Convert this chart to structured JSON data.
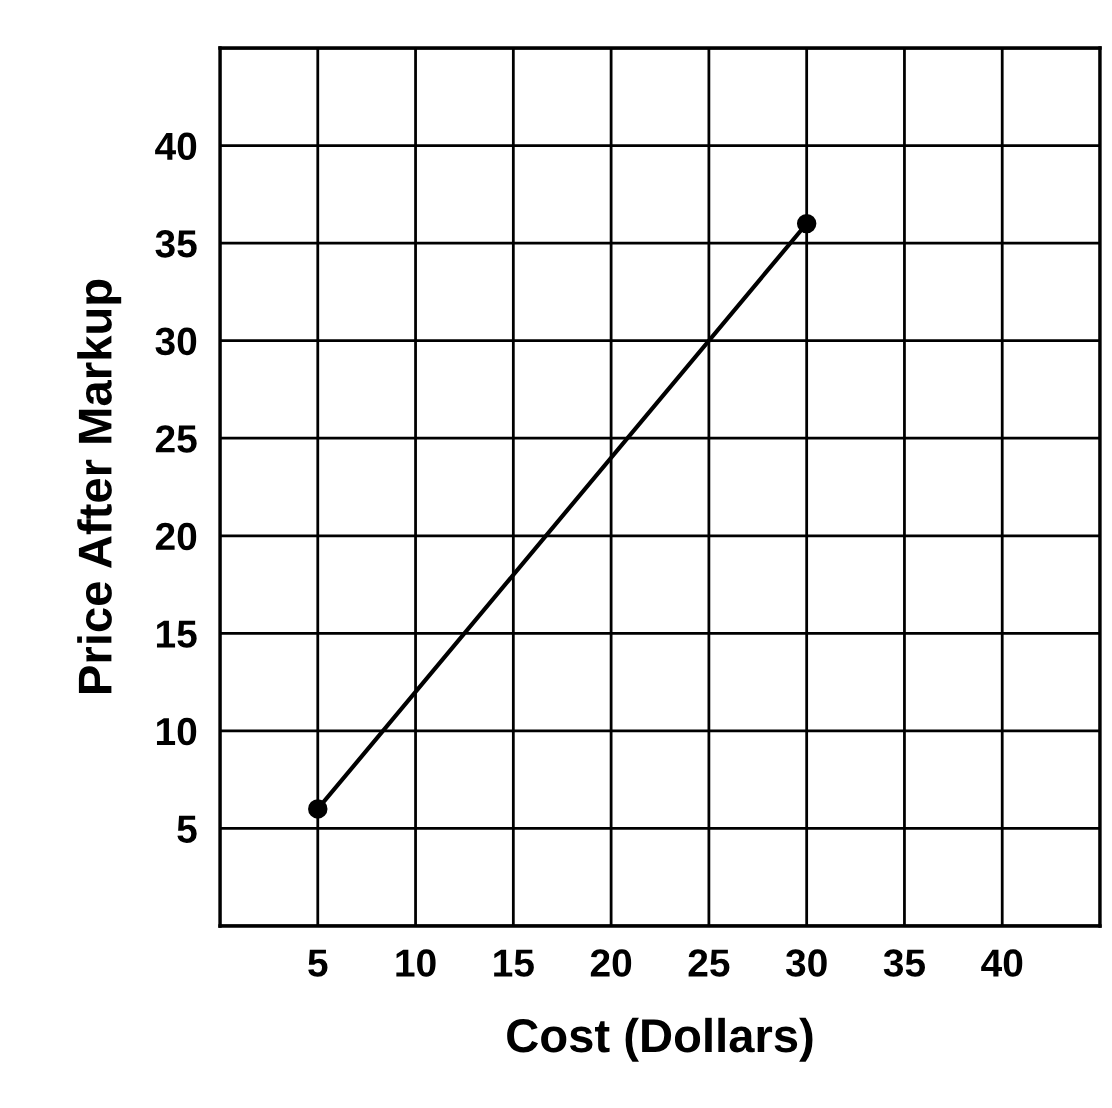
{
  "chart_data": {
    "type": "line",
    "xlabel": "Cost (Dollars)",
    "ylabel": "Price After Markup",
    "series": [
      {
        "x": [
          5,
          30
        ],
        "values": [
          6,
          36
        ],
        "color": "#000000"
      }
    ],
    "xlim": [
      0,
      45
    ],
    "ylim": [
      0,
      45
    ],
    "xticks": [
      {
        "value": 0,
        "label": null
      },
      5,
      10,
      15,
      20,
      25,
      30,
      35,
      40,
      {
        "value": 45,
        "label": null
      }
    ],
    "yticks": [
      {
        "value": 0,
        "label": null
      },
      5,
      10,
      15,
      20,
      25,
      30,
      35,
      40,
      {
        "value": 45,
        "label": null
      }
    ],
    "grid": true,
    "marker": "circle",
    "line_style": "solid"
  }
}
